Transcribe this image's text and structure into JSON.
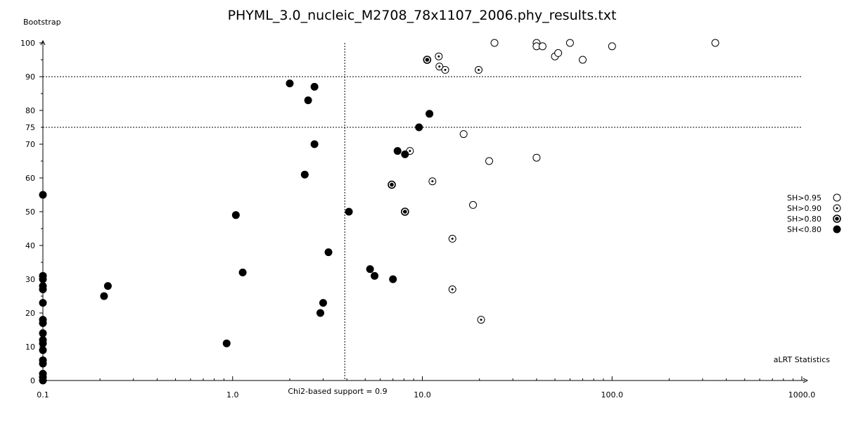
{
  "chart_data": {
    "type": "scatter",
    "title": "PHYML_3.0_nucleic_M2708_78x1107_2006.phy_results.txt",
    "ylabel": "Bootstrap",
    "xlabel": "aLRT Statistics",
    "x_scale": "log",
    "xlim": [
      0.1,
      1000.0
    ],
    "ylim": [
      0,
      100
    ],
    "x_ticks": [
      "0.1",
      "1.0",
      "10.0",
      "100.0",
      "1000.0"
    ],
    "y_ticks": [
      "0",
      "10",
      "20",
      "30",
      "40",
      "50",
      "60",
      "70",
      "75",
      "80",
      "90",
      "100"
    ],
    "reference_lines": {
      "vertical": {
        "x": 3.9,
        "label": "Chi2-based support = 0.9"
      },
      "horizontal": [
        90,
        75
      ]
    },
    "legend_position": "right",
    "series": [
      {
        "name": "SH>0.95",
        "marker": "open-circle",
        "points": [
          [
            24,
            100
          ],
          [
            40,
            100
          ],
          [
            40,
            99
          ],
          [
            43,
            99
          ],
          [
            60,
            100
          ],
          [
            50,
            96
          ],
          [
            52,
            97
          ],
          [
            70,
            95
          ],
          [
            100,
            99
          ],
          [
            350,
            100
          ],
          [
            16.5,
            73
          ],
          [
            22.5,
            65
          ],
          [
            40,
            66
          ],
          [
            18.5,
            52
          ]
        ]
      },
      {
        "name": "SH>0.90",
        "marker": "dot-circle",
        "points": [
          [
            12.2,
            96
          ],
          [
            12.3,
            93
          ],
          [
            13.2,
            92
          ],
          [
            19.8,
            92
          ],
          [
            8.6,
            68
          ],
          [
            11.3,
            59
          ],
          [
            14.4,
            42
          ],
          [
            14.4,
            27
          ],
          [
            20.4,
            18
          ]
        ]
      },
      {
        "name": "SH>0.80",
        "marker": "ring-filled",
        "points": [
          [
            10.6,
            95
          ],
          [
            6.9,
            58
          ],
          [
            8.1,
            50
          ]
        ]
      },
      {
        "name": "SH<0.80",
        "marker": "filled-circle",
        "points": [
          [
            2.0,
            88
          ],
          [
            2.7,
            87
          ],
          [
            2.5,
            83
          ],
          [
            10.9,
            79
          ],
          [
            9.6,
            75
          ],
          [
            2.7,
            70
          ],
          [
            7.4,
            68
          ],
          [
            8.1,
            67
          ],
          [
            2.4,
            61
          ],
          [
            0.1,
            55
          ],
          [
            1.04,
            49
          ],
          [
            4.1,
            50
          ],
          [
            3.2,
            38
          ],
          [
            1.13,
            32
          ],
          [
            5.3,
            33
          ],
          [
            5.6,
            31
          ],
          [
            7.0,
            30
          ],
          [
            0.1,
            31
          ],
          [
            0.1,
            30
          ],
          [
            0.1,
            28
          ],
          [
            0.1,
            27
          ],
          [
            0.1,
            23
          ],
          [
            0.22,
            28
          ],
          [
            0.21,
            25
          ],
          [
            3.0,
            23
          ],
          [
            2.9,
            20
          ],
          [
            0.1,
            18
          ],
          [
            0.1,
            17
          ],
          [
            0.1,
            14
          ],
          [
            0.1,
            12
          ],
          [
            0.1,
            11
          ],
          [
            0.1,
            9
          ],
          [
            0.93,
            11
          ],
          [
            0.1,
            6
          ],
          [
            0.1,
            5
          ],
          [
            0.1,
            2
          ],
          [
            0.1,
            1
          ],
          [
            0.1,
            0
          ]
        ]
      }
    ]
  }
}
